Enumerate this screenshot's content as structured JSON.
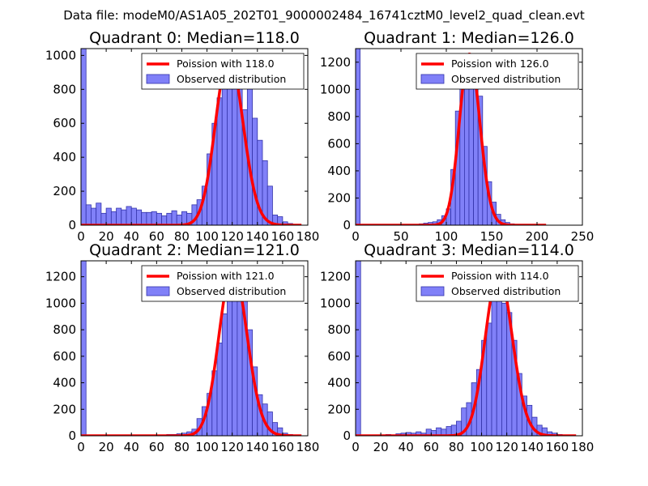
{
  "figure": {
    "suptitle": "Data file: modeM0/AS1A05_202T01_9000002484_16741cztM0_level2_quad_clean.evt"
  },
  "colors": {
    "hist_fill": "#8080f8",
    "hist_edge": "#3333aa",
    "poisson_line": "#ff0000",
    "axes": "#000000",
    "background": "#ffffff"
  },
  "chart_data": [
    {
      "type": "bar",
      "title": "Quadrant 0: Median=118.0",
      "legend": {
        "line_label": "Poission with 118.0",
        "bar_label": "Observed distribution",
        "position": "upper-right"
      },
      "xlim": [
        0,
        180
      ],
      "ylim": [
        0,
        1040
      ],
      "xticks": [
        0,
        20,
        40,
        60,
        80,
        100,
        120,
        140,
        160,
        180
      ],
      "yticks": [
        0,
        200,
        400,
        600,
        800,
        1000
      ],
      "bin_width": 4,
      "bins": [
        [
          0,
          1040
        ],
        [
          4,
          120
        ],
        [
          8,
          100
        ],
        [
          12,
          130
        ],
        [
          16,
          70
        ],
        [
          20,
          100
        ],
        [
          24,
          80
        ],
        [
          28,
          100
        ],
        [
          32,
          90
        ],
        [
          36,
          110
        ],
        [
          40,
          100
        ],
        [
          44,
          90
        ],
        [
          48,
          75
        ],
        [
          52,
          75
        ],
        [
          56,
          80
        ],
        [
          60,
          70
        ],
        [
          64,
          55
        ],
        [
          68,
          70
        ],
        [
          72,
          85
        ],
        [
          76,
          60
        ],
        [
          80,
          80
        ],
        [
          84,
          70
        ],
        [
          88,
          120
        ],
        [
          92,
          150
        ],
        [
          96,
          230
        ],
        [
          100,
          420
        ],
        [
          104,
          600
        ],
        [
          108,
          750
        ],
        [
          112,
          910
        ],
        [
          116,
          1000
        ],
        [
          120,
          930
        ],
        [
          124,
          830
        ],
        [
          128,
          680
        ],
        [
          132,
          830
        ],
        [
          136,
          630
        ],
        [
          140,
          500
        ],
        [
          144,
          380
        ],
        [
          148,
          230
        ],
        [
          152,
          60
        ],
        [
          156,
          50
        ],
        [
          160,
          20
        ],
        [
          164,
          10
        ],
        [
          168,
          5
        ]
      ],
      "poisson": {
        "lambda": 118.0,
        "peak": 1000,
        "x_range": [
          0,
          175
        ]
      }
    },
    {
      "type": "bar",
      "title": "Quadrant 1: Median=126.0",
      "legend": {
        "line_label": "Poission with 126.0",
        "bar_label": "Observed distribution",
        "position": "upper-right"
      },
      "xlim": [
        0,
        250
      ],
      "ylim": [
        0,
        1300
      ],
      "xticks": [
        0,
        50,
        100,
        150,
        200,
        250
      ],
      "yticks": [
        0,
        200,
        400,
        600,
        800,
        1000,
        1200
      ],
      "bin_width": 5,
      "bins": [
        [
          0,
          1300
        ],
        [
          5,
          5
        ],
        [
          70,
          10
        ],
        [
          75,
          15
        ],
        [
          80,
          20
        ],
        [
          85,
          25
        ],
        [
          90,
          40
        ],
        [
          95,
          70
        ],
        [
          100,
          120
        ],
        [
          105,
          410
        ],
        [
          110,
          840
        ],
        [
          115,
          1050
        ],
        [
          120,
          1180
        ],
        [
          125,
          1260
        ],
        [
          130,
          1200
        ],
        [
          135,
          950
        ],
        [
          140,
          580
        ],
        [
          145,
          320
        ],
        [
          150,
          170
        ],
        [
          155,
          80
        ],
        [
          160,
          40
        ],
        [
          165,
          20
        ],
        [
          170,
          10
        ],
        [
          175,
          5
        ]
      ],
      "poisson": {
        "lambda": 126.0,
        "peak": 1260,
        "x_range": [
          0,
          210
        ]
      }
    },
    {
      "type": "bar",
      "title": "Quadrant 2: Median=121.0",
      "legend": {
        "line_label": "Poission with 121.0",
        "bar_label": "Observed distribution",
        "position": "upper-right"
      },
      "xlim": [
        0,
        180
      ],
      "ylim": [
        0,
        1320
      ],
      "xticks": [
        0,
        20,
        40,
        60,
        80,
        100,
        120,
        140,
        160,
        180
      ],
      "yticks": [
        0,
        200,
        400,
        600,
        800,
        1000,
        1200
      ],
      "bin_width": 4,
      "bins": [
        [
          0,
          1320
        ],
        [
          64,
          5
        ],
        [
          68,
          10
        ],
        [
          72,
          10
        ],
        [
          76,
          15
        ],
        [
          80,
          20
        ],
        [
          84,
          30
        ],
        [
          88,
          50
        ],
        [
          92,
          130
        ],
        [
          96,
          220
        ],
        [
          100,
          320
        ],
        [
          104,
          490
        ],
        [
          108,
          700
        ],
        [
          112,
          920
        ],
        [
          116,
          1180
        ],
        [
          120,
          1260
        ],
        [
          124,
          1220
        ],
        [
          128,
          1050
        ],
        [
          132,
          800
        ],
        [
          136,
          520
        ],
        [
          140,
          310
        ],
        [
          144,
          240
        ],
        [
          148,
          180
        ],
        [
          152,
          100
        ],
        [
          156,
          60
        ],
        [
          160,
          20
        ],
        [
          164,
          10
        ]
      ],
      "poisson": {
        "lambda": 121.0,
        "peak": 1270,
        "x_range": [
          0,
          175
        ]
      }
    },
    {
      "type": "bar",
      "title": "Quadrant 3: Median=114.0",
      "legend": {
        "line_label": "Poission with 114.0",
        "bar_label": "Observed distribution",
        "position": "upper-right"
      },
      "xlim": [
        0,
        180
      ],
      "ylim": [
        0,
        1320
      ],
      "xticks": [
        0,
        20,
        40,
        60,
        80,
        100,
        120,
        140,
        160,
        180
      ],
      "yticks": [
        0,
        200,
        400,
        600,
        800,
        1000,
        1200
      ],
      "bin_width": 4,
      "bins": [
        [
          0,
          1320
        ],
        [
          16,
          5
        ],
        [
          24,
          10
        ],
        [
          32,
          15
        ],
        [
          36,
          20
        ],
        [
          40,
          25
        ],
        [
          44,
          20
        ],
        [
          48,
          30
        ],
        [
          52,
          20
        ],
        [
          56,
          50
        ],
        [
          60,
          40
        ],
        [
          64,
          60
        ],
        [
          68,
          50
        ],
        [
          72,
          70
        ],
        [
          76,
          80
        ],
        [
          80,
          110
        ],
        [
          84,
          210
        ],
        [
          88,
          250
        ],
        [
          92,
          400
        ],
        [
          96,
          500
        ],
        [
          100,
          720
        ],
        [
          104,
          850
        ],
        [
          108,
          1080
        ],
        [
          112,
          1250
        ],
        [
          116,
          1000
        ],
        [
          120,
          930
        ],
        [
          124,
          720
        ],
        [
          128,
          470
        ],
        [
          132,
          300
        ],
        [
          136,
          230
        ],
        [
          140,
          140
        ],
        [
          144,
          80
        ],
        [
          148,
          60
        ],
        [
          152,
          30
        ],
        [
          156,
          20
        ],
        [
          160,
          10
        ],
        [
          164,
          5
        ]
      ],
      "poisson": {
        "lambda": 114.0,
        "peak": 1230,
        "x_range": [
          0,
          175
        ]
      }
    }
  ]
}
